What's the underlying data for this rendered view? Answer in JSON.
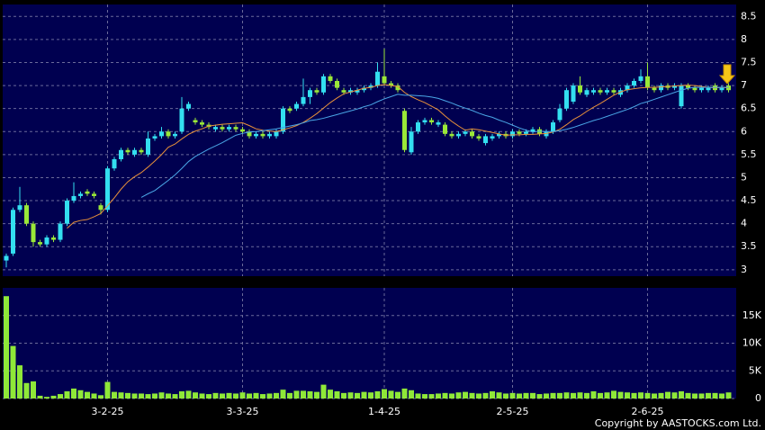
{
  "chart_data": {
    "type": "candlestick",
    "categories": [
      null,
      null,
      null,
      null,
      null,
      null,
      null,
      null,
      null,
      null,
      null,
      null,
      null,
      null,
      null,
      "3-2-25",
      null,
      null,
      null,
      null,
      null,
      null,
      null,
      null,
      null,
      null,
      null,
      null,
      null,
      null,
      null,
      null,
      null,
      null,
      null,
      "3-3-25",
      null,
      null,
      null,
      null,
      null,
      null,
      null,
      null,
      null,
      null,
      null,
      null,
      null,
      null,
      null,
      null,
      null,
      null,
      null,
      null,
      "1-4-25",
      null,
      null,
      null,
      null,
      null,
      null,
      null,
      null,
      null,
      null,
      null,
      null,
      null,
      null,
      null,
      null,
      null,
      null,
      "2-5-25",
      null,
      null,
      null,
      null,
      null,
      null,
      null,
      null,
      null,
      null,
      null,
      null,
      null,
      null,
      null,
      null,
      null,
      null,
      null,
      "2-6-25",
      null,
      null,
      null,
      null,
      null,
      null,
      null,
      null,
      null,
      null,
      null,
      null
    ],
    "open": [
      3.2,
      3.35,
      4.3,
      4.4,
      4.0,
      3.6,
      3.55,
      3.7,
      3.65,
      4.0,
      4.5,
      4.6,
      4.7,
      4.65,
      4.4,
      4.3,
      5.2,
      5.4,
      5.6,
      5.5,
      5.6,
      5.5,
      5.85,
      5.9,
      6.0,
      5.9,
      6.0,
      6.5,
      6.25,
      6.2,
      6.15,
      6.05,
      6.1,
      6.05,
      6.1,
      6.05,
      6.0,
      5.9,
      5.95,
      5.9,
      5.9,
      6.0,
      6.5,
      6.5,
      6.6,
      6.75,
      6.9,
      6.85,
      7.2,
      7.1,
      6.9,
      6.85,
      6.85,
      6.9,
      6.95,
      7.0,
      7.2,
      7.05,
      7.0,
      6.45,
      5.55,
      6.0,
      6.2,
      6.25,
      6.15,
      6.15,
      5.95,
      5.9,
      5.95,
      6.0,
      5.9,
      5.75,
      5.85,
      5.9,
      5.95,
      5.9,
      6.0,
      5.95,
      6.0,
      6.05,
      5.9,
      6.0,
      6.25,
      6.5,
      6.65,
      7.0,
      6.8,
      6.85,
      6.9,
      6.85,
      6.9,
      6.8,
      6.9,
      7.0,
      7.1,
      7.2,
      6.95,
      6.9,
      7.0,
      6.95,
      6.55,
      7.0,
      6.95,
      6.9,
      6.9,
      7.0,
      6.9,
      7.0
    ],
    "high": [
      3.35,
      4.35,
      4.8,
      4.45,
      4.05,
      3.65,
      3.75,
      3.75,
      4.05,
      4.55,
      4.9,
      4.7,
      4.75,
      4.7,
      4.45,
      5.25,
      5.45,
      5.65,
      5.65,
      5.65,
      5.65,
      6.0,
      5.95,
      6.1,
      6.05,
      6.0,
      6.75,
      6.65,
      6.3,
      6.25,
      6.2,
      6.15,
      6.15,
      6.15,
      6.15,
      6.1,
      6.05,
      6.0,
      6.0,
      6.0,
      6.05,
      6.55,
      6.55,
      6.65,
      7.15,
      6.95,
      6.95,
      7.25,
      7.25,
      7.15,
      6.95,
      6.95,
      6.95,
      7.0,
      7.05,
      7.5,
      7.8,
      7.1,
      7.05,
      6.5,
      6.1,
      6.25,
      6.3,
      6.3,
      6.25,
      6.2,
      6.0,
      6.0,
      6.05,
      6.05,
      5.95,
      5.95,
      5.95,
      6.0,
      6.0,
      6.05,
      6.05,
      6.05,
      6.1,
      6.1,
      6.05,
      6.25,
      6.6,
      6.95,
      7.05,
      7.2,
      6.95,
      6.95,
      6.95,
      6.95,
      6.95,
      6.95,
      7.05,
      7.15,
      7.35,
      7.5,
      7.0,
      7.05,
      7.05,
      7.05,
      7.05,
      7.05,
      7.0,
      7.0,
      7.0,
      7.05,
      7.0,
      7.05
    ],
    "low": [
      3.05,
      3.3,
      4.25,
      3.95,
      3.5,
      3.5,
      3.5,
      3.6,
      3.6,
      3.95,
      4.45,
      4.55,
      4.6,
      4.55,
      4.2,
      4.25,
      5.15,
      5.35,
      5.5,
      5.45,
      5.5,
      5.45,
      5.8,
      5.85,
      5.85,
      5.85,
      5.95,
      6.45,
      6.15,
      6.1,
      6.05,
      6.0,
      6.0,
      6.0,
      6.0,
      5.95,
      5.85,
      5.85,
      5.85,
      5.85,
      5.85,
      5.95,
      6.4,
      6.45,
      6.55,
      6.6,
      6.8,
      6.8,
      7.05,
      6.9,
      6.8,
      6.8,
      6.8,
      6.85,
      6.9,
      6.95,
      7.0,
      6.95,
      6.85,
      5.55,
      5.5,
      5.95,
      6.15,
      6.15,
      6.1,
      5.9,
      5.85,
      5.85,
      5.9,
      5.85,
      5.8,
      5.7,
      5.8,
      5.85,
      5.85,
      5.85,
      5.9,
      5.9,
      5.95,
      5.9,
      5.85,
      5.95,
      6.2,
      6.45,
      6.6,
      6.8,
      6.75,
      6.8,
      6.8,
      6.8,
      6.8,
      6.75,
      6.85,
      6.95,
      7.05,
      6.9,
      6.85,
      6.85,
      6.9,
      6.9,
      6.5,
      6.9,
      6.85,
      6.85,
      6.85,
      6.85,
      6.85,
      6.85
    ],
    "close": [
      3.3,
      4.3,
      4.4,
      4.0,
      3.6,
      3.55,
      3.7,
      3.65,
      4.0,
      4.5,
      4.6,
      4.65,
      4.65,
      4.6,
      4.3,
      5.2,
      5.4,
      5.6,
      5.55,
      5.6,
      5.55,
      5.85,
      5.9,
      6.0,
      5.9,
      5.95,
      6.5,
      6.6,
      6.2,
      6.15,
      6.1,
      6.1,
      6.05,
      6.1,
      6.05,
      6.0,
      5.9,
      5.95,
      5.9,
      5.95,
      6.0,
      6.5,
      6.45,
      6.6,
      6.75,
      6.9,
      6.85,
      7.2,
      7.1,
      6.95,
      6.85,
      6.9,
      6.9,
      6.95,
      7.0,
      7.3,
      7.05,
      7.0,
      6.9,
      5.6,
      6.0,
      6.2,
      6.25,
      6.2,
      6.2,
      5.95,
      5.9,
      5.95,
      6.0,
      5.9,
      5.85,
      5.9,
      5.9,
      5.95,
      5.9,
      6.0,
      5.95,
      6.0,
      6.05,
      5.95,
      6.0,
      6.2,
      6.5,
      6.9,
      7.0,
      6.85,
      6.9,
      6.9,
      6.85,
      6.9,
      6.85,
      6.9,
      7.0,
      7.1,
      7.2,
      6.95,
      6.9,
      7.0,
      6.95,
      7.0,
      7.0,
      6.95,
      6.9,
      6.95,
      6.95,
      6.9,
      6.95,
      6.9
    ],
    "up_color": "#33dff0",
    "down_color": "#9ae838",
    "series": [
      {
        "color": "#e8913a",
        "values": [
          null,
          null,
          null,
          null,
          null,
          null,
          null,
          null,
          null,
          3.9,
          4.03,
          4.07,
          4.09,
          4.15,
          4.22,
          4.39,
          4.56,
          4.75,
          4.91,
          5.02,
          5.11,
          5.23,
          5.36,
          5.5,
          5.66,
          5.73,
          5.84,
          5.94,
          6.01,
          6.06,
          6.12,
          6.14,
          6.16,
          6.17,
          6.18,
          6.19,
          6.13,
          6.06,
          6.03,
          6.01,
          6.0,
          6.04,
          6.08,
          6.13,
          6.2,
          6.29,
          6.39,
          6.51,
          6.63,
          6.73,
          6.82,
          6.86,
          6.9,
          6.94,
          6.96,
          7.0,
          7.02,
          7.0,
          6.98,
          6.85,
          6.76,
          6.69,
          6.63,
          6.55,
          6.47,
          6.34,
          6.22,
          6.12,
          6.03,
          6.06,
          6.04,
          6.01,
          5.98,
          5.95,
          5.92,
          5.93,
          5.93,
          5.94,
          5.94,
          5.95,
          5.96,
          5.99,
          6.05,
          6.15,
          6.26,
          6.34,
          6.44,
          6.53,
          6.61,
          6.7,
          6.79,
          6.86,
          6.91,
          6.93,
          6.95,
          6.96,
          6.96,
          6.97,
          6.98,
          6.99,
          7.0,
          7.01,
          7.0,
          6.98,
          6.96,
          6.95,
          6.96,
          6.95
        ]
      },
      {
        "color": "#4aa6e6",
        "values": [
          null,
          null,
          null,
          null,
          null,
          null,
          null,
          null,
          null,
          null,
          null,
          null,
          null,
          null,
          null,
          null,
          null,
          null,
          null,
          null,
          4.57,
          4.65,
          4.72,
          4.83,
          4.94,
          5.06,
          5.2,
          5.35,
          5.46,
          5.54,
          5.62,
          5.69,
          5.76,
          5.84,
          5.92,
          5.96,
          5.99,
          6.0,
          6.02,
          6.04,
          6.06,
          6.09,
          6.12,
          6.15,
          6.19,
          6.24,
          6.26,
          6.29,
          6.33,
          6.37,
          6.41,
          6.45,
          6.49,
          6.54,
          6.58,
          6.65,
          6.71,
          6.76,
          6.81,
          6.79,
          6.79,
          6.78,
          6.77,
          6.75,
          6.72,
          6.67,
          6.62,
          6.56,
          6.51,
          6.46,
          6.4,
          6.35,
          6.31,
          6.25,
          6.2,
          6.14,
          6.08,
          6.03,
          5.99,
          6.01,
          6.0,
          6.0,
          6.02,
          6.05,
          6.09,
          6.14,
          6.19,
          6.24,
          6.28,
          6.33,
          6.38,
          6.43,
          6.48,
          6.54,
          6.61,
          6.65,
          6.7,
          6.75,
          6.8,
          6.85,
          6.9,
          6.94,
          6.96,
          6.96,
          6.96,
          6.96,
          6.96,
          6.96
        ]
      }
    ],
    "ylim": [
      2.86,
      8.76
    ],
    "yticks": [
      3,
      3.5,
      4,
      4.5,
      5,
      5.5,
      6,
      6.5,
      7,
      7.5,
      8,
      8.5
    ],
    "grid": true,
    "volume": {
      "type": "bar",
      "color": "#8fe838",
      "values": [
        18500,
        9500,
        6000,
        2800,
        3100,
        500,
        300,
        500,
        800,
        1300,
        1800,
        1500,
        1200,
        900,
        600,
        3000,
        1200,
        1100,
        1000,
        900,
        900,
        800,
        900,
        1100,
        900,
        800,
        1300,
        1400,
        1100,
        900,
        800,
        1000,
        900,
        1000,
        900,
        1100,
        900,
        1000,
        800,
        900,
        1000,
        1600,
        1000,
        1400,
        1400,
        1300,
        1200,
        2500,
        1600,
        1300,
        1000,
        1100,
        1000,
        1200,
        1100,
        1300,
        1700,
        1400,
        1200,
        1800,
        1500,
        900,
        800,
        800,
        900,
        1000,
        900,
        1100,
        1200,
        1000,
        900,
        1000,
        1300,
        1100,
        900,
        1000,
        900,
        1000,
        1000,
        800,
        900,
        1000,
        1000,
        1100,
        1000,
        1100,
        1000,
        1300,
        1000,
        1100,
        1400,
        1200,
        1100,
        1000,
        1100,
        1000,
        900,
        1000,
        1200,
        1100,
        1300,
        1000,
        900,
        900,
        1000,
        1000,
        900,
        1100
      ],
      "ylim": [
        0,
        20000
      ],
      "yticks": [
        0,
        {
          "value": 5000,
          "label": "5K"
        },
        {
          "value": 10000,
          "label": "10K"
        },
        {
          "value": 15000,
          "label": "15K"
        }
      ]
    }
  },
  "copyright": "Copyright by AASTOCKS.com Ltd."
}
